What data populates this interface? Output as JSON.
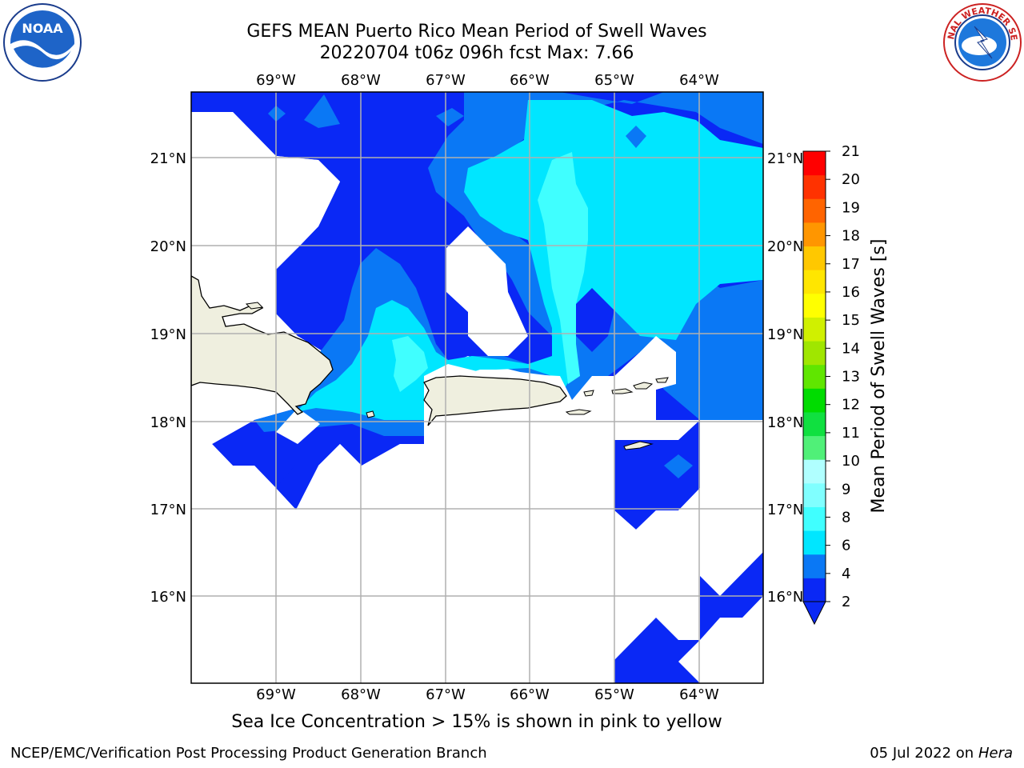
{
  "title_line1": "GEFS MEAN Puerto Rico Mean Period of Swell Waves",
  "title_line2": "20220704 t06z 096h fcst   Max: 7.66",
  "note": "Sea Ice Concentration > 15% is shown in pink to yellow",
  "footer_left": "NCEP/EMC/Verification Post Processing Product Generation Branch",
  "footer_date": "05 Jul 2022 on ",
  "footer_machine": "Hera",
  "logos": {
    "left": "NOAA",
    "left_icon": "noaa-logo-icon",
    "right": "NATIONAL WEATHER SERVICE",
    "right_icon": "nws-logo-icon"
  },
  "map": {
    "lon_labels": [
      "69°W",
      "68°W",
      "67°W",
      "66°W",
      "65°W",
      "64°W"
    ],
    "lat_labels": [
      "21°N",
      "20°N",
      "19°N",
      "18°N",
      "17°N",
      "16°N"
    ],
    "colors": {
      "land": "#efefdf",
      "missing": "#ffffff",
      "grid": "#b0b0b0"
    }
  },
  "colorbar": {
    "label": "Mean Period of Swell Waves [s]",
    "ticks": [
      "2",
      "4",
      "6",
      "8",
      "9",
      "10",
      "11",
      "12",
      "13",
      "14",
      "15",
      "16",
      "17",
      "18",
      "19",
      "20",
      "21"
    ],
    "colors": [
      "#0a28f5",
      "#0a78f5",
      "#00e6ff",
      "#40ffff",
      "#80ffff",
      "#b0ffff",
      "#50f078",
      "#10e040",
      "#00dc00",
      "#60e600",
      "#a0e600",
      "#d0f000",
      "#ffff00",
      "#ffe600",
      "#ffc800",
      "#ff9600",
      "#ff6400",
      "#ff3200",
      "#ff0000"
    ],
    "under_color": "#0a28f5"
  }
}
